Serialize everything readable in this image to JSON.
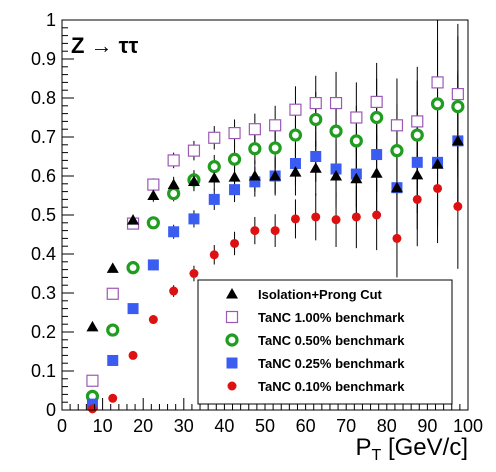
{
  "chart_data": {
    "type": "scatter",
    "annotation": "Z → ττ",
    "xlabel": "P",
    "xlabel_sub": "T",
    "xlabel_unit": "[GeV/c]",
    "ylabel": "",
    "xlim": [
      0,
      100
    ],
    "ylim": [
      0,
      1
    ],
    "x_ticks": [
      0,
      10,
      20,
      30,
      40,
      50,
      60,
      70,
      80,
      90,
      100
    ],
    "x_tick_labels": [
      "0",
      "10",
      "20",
      "30",
      "40",
      "50",
      "60",
      "70",
      "80",
      "90",
      "100"
    ],
    "y_ticks": [
      0,
      0.1,
      0.2,
      0.3,
      0.4,
      0.5,
      0.6,
      0.7,
      0.8,
      0.9,
      1
    ],
    "y_tick_labels": [
      "0",
      "0.1",
      "0.2",
      "0.3",
      "0.4",
      "0.5",
      "0.6",
      "0.7",
      "0.8",
      "0.9",
      "1"
    ],
    "grid": false,
    "legend_position": "bottom-right",
    "series": [
      {
        "name": "Isolation+Prong Cut",
        "marker": "triangle",
        "color": "#000000",
        "points": [
          {
            "x": 7.5,
            "y": 0.213,
            "err": 0.008
          },
          {
            "x": 12.5,
            "y": 0.363,
            "err": 0.01
          },
          {
            "x": 17.5,
            "y": 0.487,
            "err": 0.014
          },
          {
            "x": 22.5,
            "y": 0.55,
            "err": 0.016
          },
          {
            "x": 27.5,
            "y": 0.578,
            "err": 0.02
          },
          {
            "x": 32.5,
            "y": 0.586,
            "err": 0.025
          },
          {
            "x": 37.5,
            "y": 0.595,
            "err": 0.03
          },
          {
            "x": 42.5,
            "y": 0.597,
            "err": 0.035
          },
          {
            "x": 47.5,
            "y": 0.6,
            "err": 0.04
          },
          {
            "x": 52.5,
            "y": 0.6,
            "err": 0.05
          },
          {
            "x": 57.5,
            "y": 0.61,
            "err": 0.06
          },
          {
            "x": 62.5,
            "y": 0.62,
            "err": 0.07
          },
          {
            "x": 67.5,
            "y": 0.6,
            "err": 0.08
          },
          {
            "x": 72.5,
            "y": 0.593,
            "err": 0.09
          },
          {
            "x": 77.5,
            "y": 0.607,
            "err": 0.1
          },
          {
            "x": 82.5,
            "y": 0.57,
            "err": 0.12
          },
          {
            "x": 87.5,
            "y": 0.603,
            "err": 0.14
          },
          {
            "x": 92.5,
            "y": 0.63,
            "err": 0.16
          },
          {
            "x": 97.5,
            "y": 0.69,
            "err": 0.18
          }
        ]
      },
      {
        "name": "TaNC 1.00% benchmark",
        "marker": "open-square",
        "color": "#9b59b6",
        "points": [
          {
            "x": 7.5,
            "y": 0.075,
            "err": 0.006
          },
          {
            "x": 12.5,
            "y": 0.298,
            "err": 0.01
          },
          {
            "x": 17.5,
            "y": 0.478,
            "err": 0.014
          },
          {
            "x": 22.5,
            "y": 0.578,
            "err": 0.016
          },
          {
            "x": 27.5,
            "y": 0.64,
            "err": 0.02
          },
          {
            "x": 32.5,
            "y": 0.665,
            "err": 0.025
          },
          {
            "x": 37.5,
            "y": 0.698,
            "err": 0.03
          },
          {
            "x": 42.5,
            "y": 0.71,
            "err": 0.035
          },
          {
            "x": 47.5,
            "y": 0.72,
            "err": 0.04
          },
          {
            "x": 52.5,
            "y": 0.73,
            "err": 0.05
          },
          {
            "x": 57.5,
            "y": 0.77,
            "err": 0.06
          },
          {
            "x": 62.5,
            "y": 0.787,
            "err": 0.07
          },
          {
            "x": 67.5,
            "y": 0.787,
            "err": 0.08
          },
          {
            "x": 72.5,
            "y": 0.75,
            "err": 0.09
          },
          {
            "x": 77.5,
            "y": 0.79,
            "err": 0.1
          },
          {
            "x": 82.5,
            "y": 0.73,
            "err": 0.12
          },
          {
            "x": 87.5,
            "y": 0.74,
            "err": 0.14
          },
          {
            "x": 92.5,
            "y": 0.84,
            "err": 0.16
          },
          {
            "x": 97.5,
            "y": 0.81,
            "err": 0.18
          }
        ]
      },
      {
        "name": "TaNC 0.50% benchmark",
        "marker": "open-circle",
        "color": "#1f9d1f",
        "points": [
          {
            "x": 7.5,
            "y": 0.035,
            "err": 0.005
          },
          {
            "x": 12.5,
            "y": 0.205,
            "err": 0.009
          },
          {
            "x": 17.5,
            "y": 0.365,
            "err": 0.012
          },
          {
            "x": 22.5,
            "y": 0.48,
            "err": 0.015
          },
          {
            "x": 27.5,
            "y": 0.555,
            "err": 0.02
          },
          {
            "x": 32.5,
            "y": 0.59,
            "err": 0.025
          },
          {
            "x": 37.5,
            "y": 0.624,
            "err": 0.03
          },
          {
            "x": 42.5,
            "y": 0.643,
            "err": 0.035
          },
          {
            "x": 47.5,
            "y": 0.67,
            "err": 0.04
          },
          {
            "x": 52.5,
            "y": 0.672,
            "err": 0.05
          },
          {
            "x": 57.5,
            "y": 0.705,
            "err": 0.06
          },
          {
            "x": 62.5,
            "y": 0.745,
            "err": 0.07
          },
          {
            "x": 67.5,
            "y": 0.715,
            "err": 0.08
          },
          {
            "x": 72.5,
            "y": 0.69,
            "err": 0.09
          },
          {
            "x": 77.5,
            "y": 0.75,
            "err": 0.1
          },
          {
            "x": 82.5,
            "y": 0.665,
            "err": 0.12
          },
          {
            "x": 87.5,
            "y": 0.705,
            "err": 0.14
          },
          {
            "x": 92.5,
            "y": 0.785,
            "err": 0.16
          },
          {
            "x": 97.5,
            "y": 0.778,
            "err": 0.18
          }
        ]
      },
      {
        "name": "TaNC 0.25% benchmark",
        "marker": "filled-square",
        "color": "#3a5cf0",
        "points": [
          {
            "x": 7.5,
            "y": 0.015,
            "err": 0.004
          },
          {
            "x": 12.5,
            "y": 0.127,
            "err": 0.008
          },
          {
            "x": 17.5,
            "y": 0.26,
            "err": 0.011
          },
          {
            "x": 22.5,
            "y": 0.372,
            "err": 0.014
          },
          {
            "x": 27.5,
            "y": 0.457,
            "err": 0.018
          },
          {
            "x": 32.5,
            "y": 0.49,
            "err": 0.022
          },
          {
            "x": 37.5,
            "y": 0.54,
            "err": 0.027
          },
          {
            "x": 42.5,
            "y": 0.565,
            "err": 0.032
          },
          {
            "x": 47.5,
            "y": 0.585,
            "err": 0.038
          },
          {
            "x": 52.5,
            "y": 0.6,
            "err": 0.045
          },
          {
            "x": 57.5,
            "y": 0.632,
            "err": 0.055
          },
          {
            "x": 62.5,
            "y": 0.65,
            "err": 0.065
          },
          {
            "x": 67.5,
            "y": 0.618,
            "err": 0.075
          },
          {
            "x": 72.5,
            "y": 0.605,
            "err": 0.085
          },
          {
            "x": 77.5,
            "y": 0.655,
            "err": 0.095
          },
          {
            "x": 82.5,
            "y": 0.57,
            "err": 0.11
          },
          {
            "x": 87.5,
            "y": 0.635,
            "err": 0.13
          },
          {
            "x": 92.5,
            "y": 0.635,
            "err": 0.15
          },
          {
            "x": 97.5,
            "y": 0.69,
            "err": 0.17
          }
        ]
      },
      {
        "name": "TaNC 0.10% benchmark",
        "marker": "filled-circle",
        "color": "#dd1111",
        "points": [
          {
            "x": 7.5,
            "y": 0.003,
            "err": 0.003
          },
          {
            "x": 12.5,
            "y": 0.03,
            "err": 0.005
          },
          {
            "x": 17.5,
            "y": 0.14,
            "err": 0.008
          },
          {
            "x": 22.5,
            "y": 0.232,
            "err": 0.011
          },
          {
            "x": 27.5,
            "y": 0.305,
            "err": 0.015
          },
          {
            "x": 32.5,
            "y": 0.35,
            "err": 0.02
          },
          {
            "x": 37.5,
            "y": 0.398,
            "err": 0.025
          },
          {
            "x": 42.5,
            "y": 0.427,
            "err": 0.03
          },
          {
            "x": 47.5,
            "y": 0.46,
            "err": 0.035
          },
          {
            "x": 52.5,
            "y": 0.46,
            "err": 0.042
          },
          {
            "x": 57.5,
            "y": 0.49,
            "err": 0.05
          },
          {
            "x": 62.5,
            "y": 0.495,
            "err": 0.06
          },
          {
            "x": 67.5,
            "y": 0.488,
            "err": 0.07
          },
          {
            "x": 72.5,
            "y": 0.495,
            "err": 0.08
          },
          {
            "x": 77.5,
            "y": 0.5,
            "err": 0.09
          },
          {
            "x": 82.5,
            "y": 0.44,
            "err": 0.1
          },
          {
            "x": 87.5,
            "y": 0.54,
            "err": 0.12
          },
          {
            "x": 92.5,
            "y": 0.568,
            "err": 0.14
          },
          {
            "x": 97.5,
            "y": 0.522,
            "err": 0.16
          }
        ]
      }
    ]
  }
}
